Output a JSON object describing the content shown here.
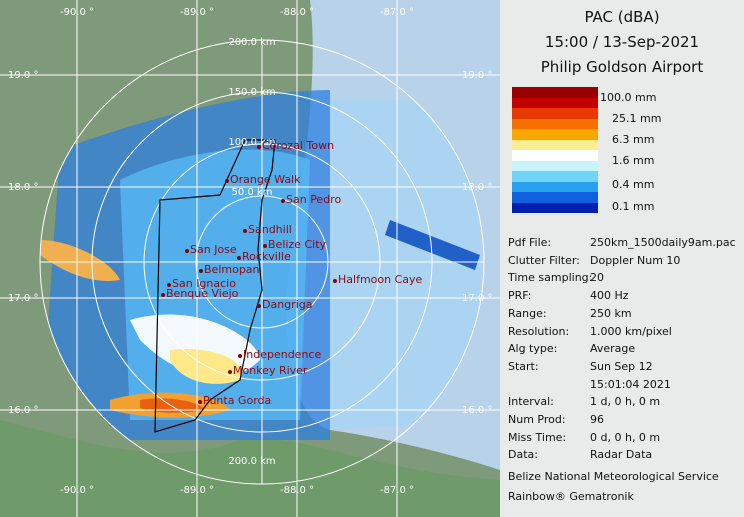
{
  "header": {
    "title": "PAC (dBA)",
    "time": "15:00 / 13-Sep-2021",
    "site": "Philip Goldson Airport"
  },
  "legend": {
    "labels": [
      "100.0 mm",
      "25.1 mm",
      "6.3 mm",
      "1.6 mm",
      "0.4 mm",
      "0.1 mm"
    ]
  },
  "info": {
    "rows": [
      [
        "Pdf File:",
        "250km_1500daily9am.pac"
      ],
      [
        "Clutter Filter:",
        "Doppler Num 10"
      ],
      [
        "Time sampling:",
        "20"
      ],
      [
        "PRF:",
        "400 Hz"
      ],
      [
        "Range:",
        "250 km"
      ],
      [
        "Resolution:",
        "1.000 km/pixel"
      ],
      [
        "Alg type:",
        "Average"
      ],
      [
        "Start:",
        "Sun Sep 12"
      ],
      [
        "",
        "15:01:04 2021"
      ],
      [
        "Interval:",
        "1 d, 0 h, 0 m"
      ],
      [
        "Num Prod:",
        "96"
      ],
      [
        "Miss Time:",
        "0 d, 0 h, 0 m"
      ],
      [
        "Data:",
        "Radar Data"
      ]
    ],
    "footer": [
      "Belize National Meteorological Service",
      "Rainbow® Gematronik"
    ]
  },
  "map": {
    "lon_top": [
      "-90.0 °",
      "-89.0 °",
      "-88.0 °",
      "-87.0 °"
    ],
    "lon_bottom": [
      "-90.0 °",
      "-89.0 °",
      "-88.0 °",
      "-87.0 °"
    ],
    "lat_left": [
      "19.0 °",
      "18.0 °",
      "17.0 °",
      "16.0 °"
    ],
    "lat_right": [
      "19.0 °",
      "18.0 °",
      "17.0 °",
      "16.0 °"
    ],
    "rings": [
      "200.0 km",
      "150.0 km",
      "100.0 km",
      "50.0 km"
    ],
    "ring_bottom": "200.0 km",
    "places": [
      "Corozal Town",
      "Orange Walk",
      "San Pedro",
      "Sandhill",
      "San Jose",
      "Belize City",
      "Rockville",
      "Belmopan",
      "San Ignacio",
      "Benque Viejo",
      "Halfmoon Caye",
      "Dangriga",
      "Independence",
      "Monkey River",
      "Punta Gorda"
    ]
  }
}
